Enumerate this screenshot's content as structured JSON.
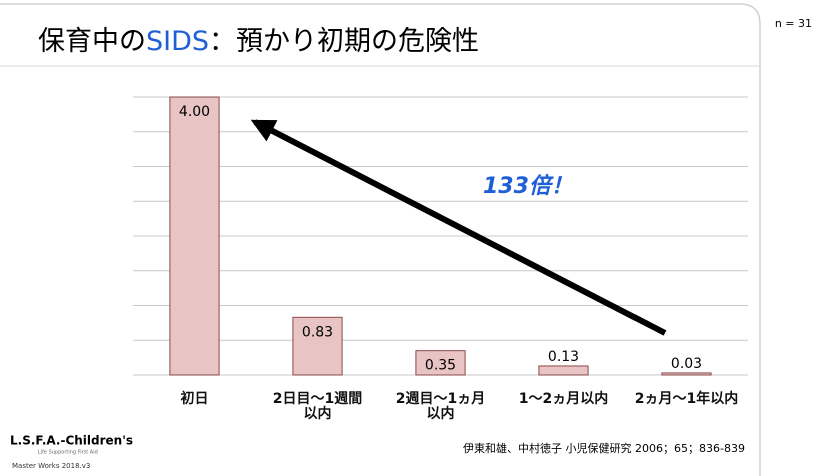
{
  "chart_data": {
    "type": "bar",
    "title_parts": [
      "保育中の",
      "SIDS",
      "：預かり初期の危険性"
    ],
    "note": "n = 31",
    "categories": [
      "初日",
      "2日目〜1週間\n以内",
      "2週目〜1ヵ月\n以内",
      "1〜2ヵ月以内",
      "2ヵ月〜1年以内"
    ],
    "values": [
      4.0,
      0.83,
      0.35,
      0.13,
      0.03
    ],
    "value_labels": [
      "4.00",
      "0.83",
      "0.35",
      "0.13",
      "0.03"
    ],
    "color": "#e8c4c4",
    "ylim": [
      0,
      4
    ],
    "yticks": [
      0,
      0.5,
      1,
      1.5,
      2,
      2.5,
      3,
      3.5,
      4
    ],
    "grid": true,
    "annotation": "133倍！",
    "source": "伊東和雄、中村徳子 小児保健研究 2006；65；836-839"
  },
  "logo": {
    "name": "L.S.F.A.-Children's",
    "tagline": "Life Supporting First Aid",
    "version": "Master Works 2018.v3"
  }
}
